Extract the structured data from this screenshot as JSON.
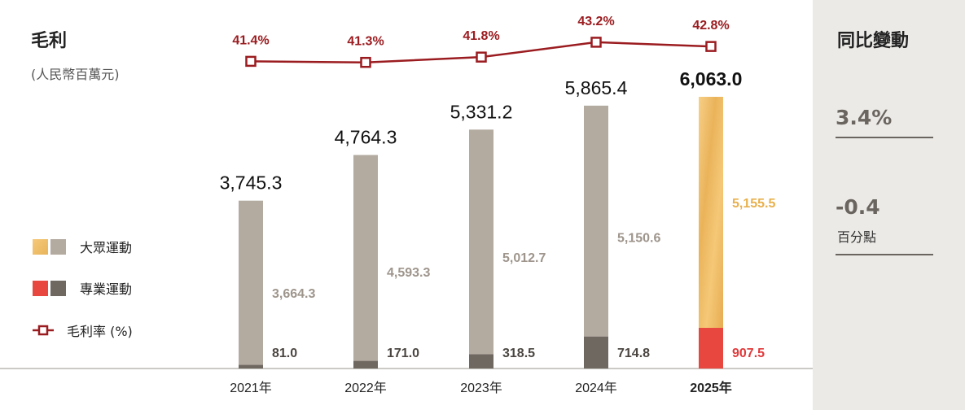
{
  "title": "毛利",
  "subtitle": "(人民幣百萬元)",
  "legend": {
    "mass": "大眾運動",
    "pro": "專業運動",
    "margin": "毛利率 (%)"
  },
  "yoy_panel": {
    "title": "同比變動",
    "gross_profit_change": "3.4%",
    "margin_change": "-0.4",
    "margin_change_unit": "百分點"
  },
  "colors": {
    "mass_grey": "#b3aaa0",
    "pro_dark": "#6f6861",
    "mass_highlight": "#f2be6c",
    "pro_highlight": "#e8473f",
    "margin_line": "#9b1c20",
    "mass_label_grey": "#9e958c",
    "pro_label_grey": "#4a4540",
    "mass_label_highlight": "#e8b04c",
    "pro_label_highlight": "#e0393a"
  },
  "chart_data": {
    "type": "bar",
    "stacked": true,
    "categories": [
      "2021年",
      "2022年",
      "2023年",
      "2024年",
      "2025年"
    ],
    "highlight_category": "2025年",
    "totals": [
      "3,745.3",
      "4,764.3",
      "5,331.2",
      "5,865.4",
      "6,063.0"
    ],
    "total_values": [
      3745.3,
      4764.3,
      5331.2,
      5865.4,
      6063.0
    ],
    "series": [
      {
        "name": "大眾運動",
        "values": [
          3664.3,
          4593.3,
          5012.7,
          5150.6,
          5155.5
        ],
        "labels": [
          "3,664.3",
          "4,593.3",
          "5,012.7",
          "5,150.6",
          "5,155.5"
        ]
      },
      {
        "name": "專業運動",
        "values": [
          81.0,
          171.0,
          318.5,
          714.8,
          907.5
        ],
        "labels": [
          "81.0",
          "171.0",
          "318.5",
          "714.8",
          "907.5"
        ]
      }
    ],
    "margin_line": {
      "name": "毛利率 (%)",
      "values": [
        41.4,
        41.3,
        41.8,
        43.2,
        42.8
      ],
      "labels": [
        "41.4%",
        "41.3%",
        "41.8%",
        "43.2%",
        "42.8%"
      ]
    },
    "ylim": [
      0,
      6063.0
    ],
    "margin_ylim": [
      41.2,
      43.5
    ],
    "grid": false
  }
}
